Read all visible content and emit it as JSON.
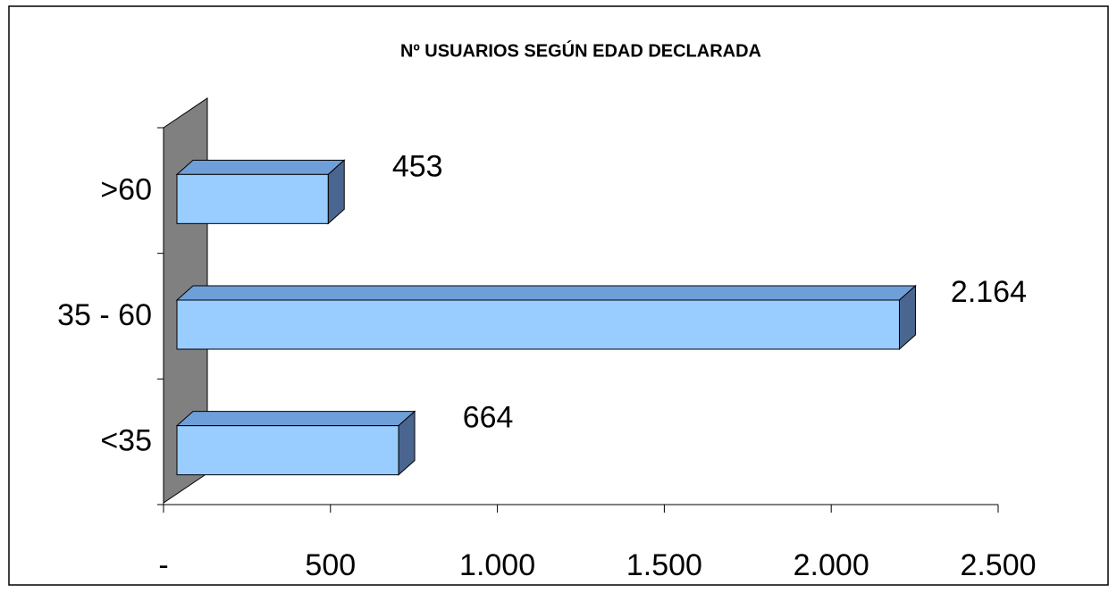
{
  "chart_data": {
    "type": "bar",
    "orientation": "horizontal",
    "title": "Nº USUARIOS SEGÚN EDAD DECLARADA",
    "categories": [
      "<35",
      "35 - 60",
      ">60"
    ],
    "values": [
      664,
      2164,
      453
    ],
    "value_labels": [
      "664",
      "2.164",
      "453"
    ],
    "color": "#99ccff",
    "xlim": [
      0,
      2500
    ],
    "xticks": [
      {
        "value": 0,
        "label": "-"
      },
      500,
      {
        "value": 1000,
        "label": "1.000"
      },
      {
        "value": 1500,
        "label": "1.500"
      },
      {
        "value": 2000,
        "label": "2.000"
      },
      {
        "value": 2500,
        "label": "2.500"
      }
    ]
  }
}
